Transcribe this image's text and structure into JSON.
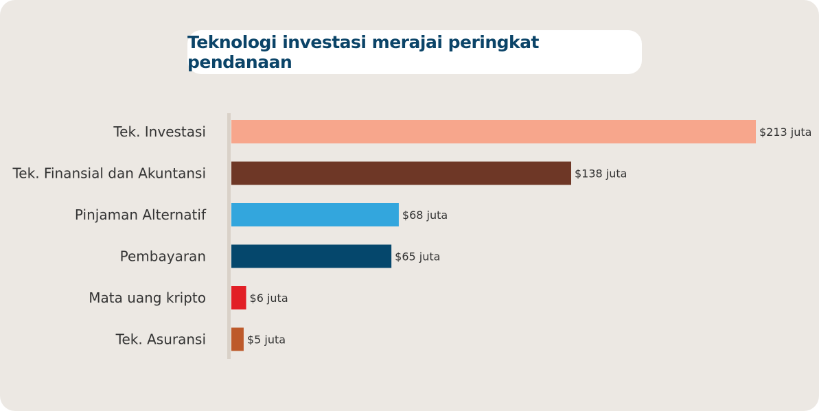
{
  "chart_data": {
    "type": "bar",
    "orientation": "horizontal",
    "title": "Teknologi investasi merajai peringkat pendanaan",
    "categories": [
      "Tek. Investasi",
      "Tek. Finansial dan Akuntansi",
      "Pinjaman Alternatif",
      "Pembayaran",
      "Mata uang kripto",
      "Tek. Asuransi"
    ],
    "values": [
      213,
      138,
      68,
      65,
      6,
      5
    ],
    "data_labels": [
      "$213 juta",
      "$138 juta",
      "$68 juta",
      "$65 juta",
      "$6 juta",
      "$5 juta"
    ],
    "colors": [
      "#f7a68c",
      "#6e3726",
      "#33a6dd",
      "#05476c",
      "#e21f26",
      "#bd5a2b"
    ],
    "xlim": [
      0,
      213
    ],
    "grid": false,
    "legend": "none"
  }
}
